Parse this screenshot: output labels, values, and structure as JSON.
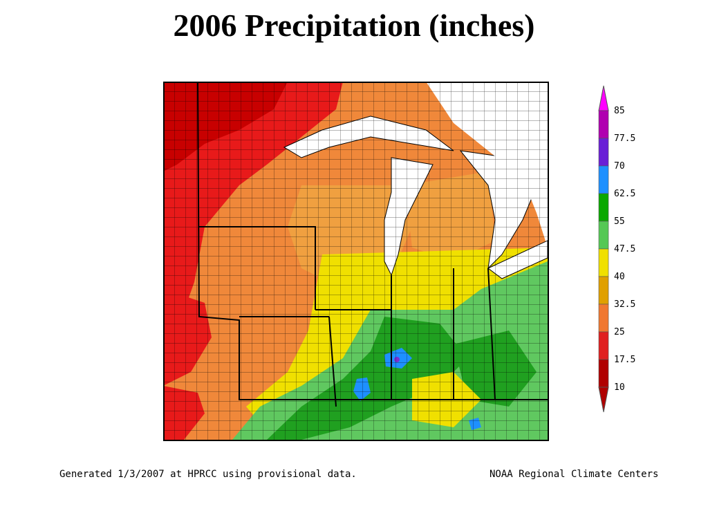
{
  "title": "2006 Precipitation (inches)",
  "footer": {
    "left": "Generated 1/3/2007 at HPRCC using provisional data.",
    "right": "NOAA Regional Climate Centers"
  },
  "legend": {
    "labels": [
      "85",
      "77.5",
      "70",
      "62.5",
      "55",
      "47.5",
      "40",
      "32.5",
      "25",
      "17.5",
      "10"
    ],
    "colors": [
      "#ff00ff",
      "#b000b0",
      "#6a1fd6",
      "#1e90ff",
      "#0aa800",
      "#55c855",
      "#f0e000",
      "#e0a000",
      "#f07830",
      "#e02020",
      "#b00000"
    ]
  },
  "map": {
    "colors": {
      "darkred": "#c80000",
      "red": "#e81a1a",
      "orange": "#f0883a",
      "lightorange": "#f0a040",
      "yellow": "#f0e000",
      "lightgreen": "#60c860",
      "green": "#20a020",
      "blue": "#1e90ff",
      "purple": "#7a30d0",
      "lake": "#ffffff"
    }
  }
}
